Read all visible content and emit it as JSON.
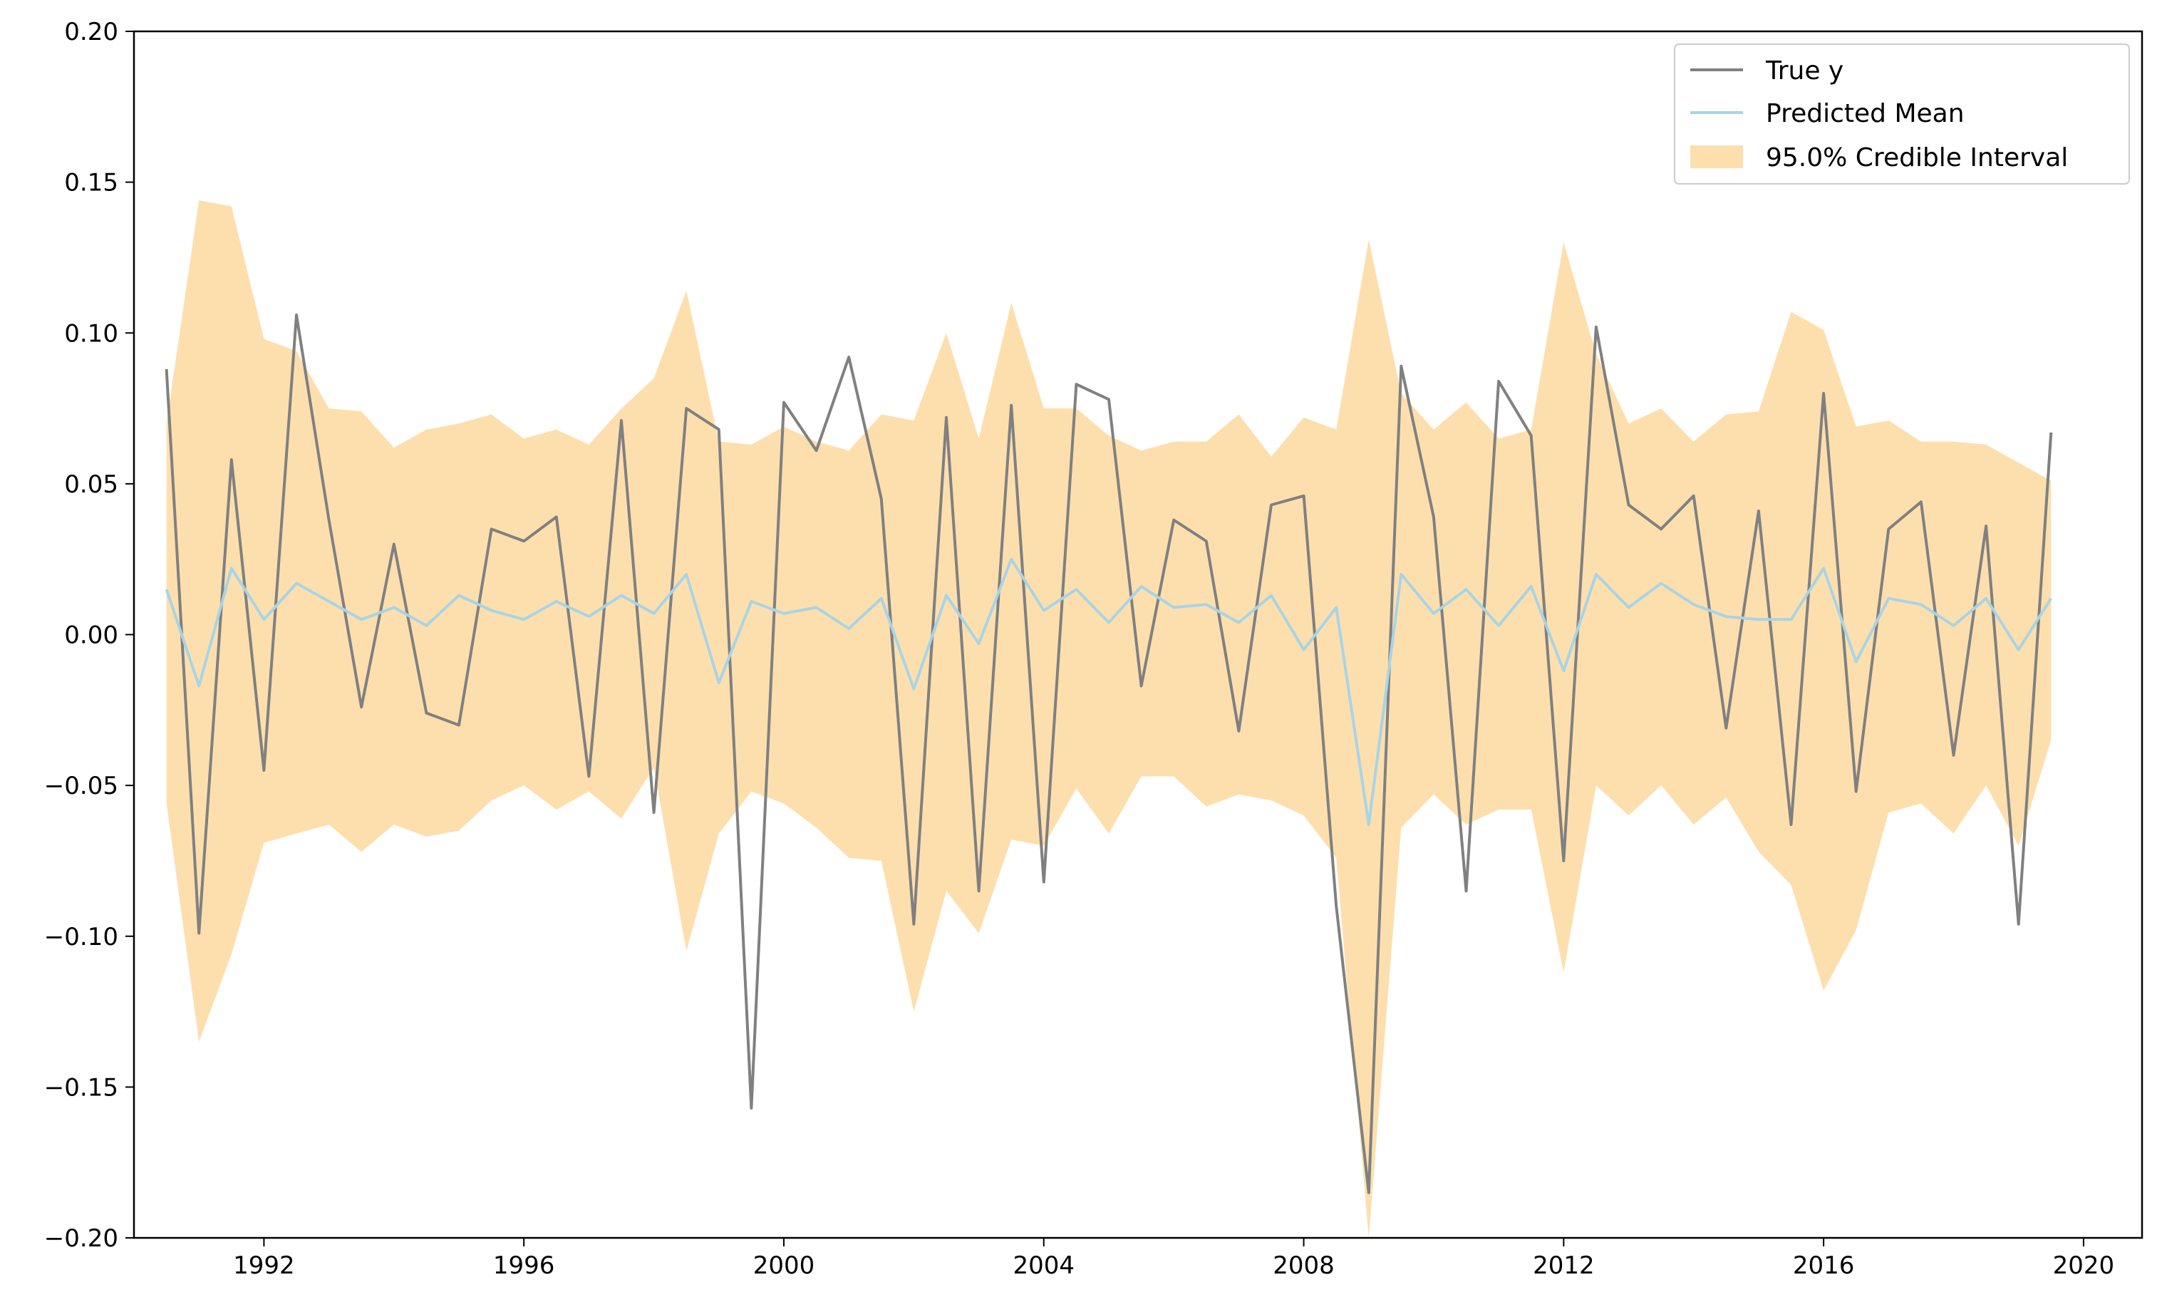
{
  "chart_data": {
    "type": "line",
    "title": "",
    "xlabel": "",
    "ylabel": "",
    "xlim": [
      1990.0,
      2020.9
    ],
    "ylim": [
      -0.2,
      0.2
    ],
    "grid": false,
    "legend_placement": "top-right",
    "x_tick_labels": [
      "1992",
      "1996",
      "2000",
      "2004",
      "2008",
      "2012",
      "2016",
      "2020"
    ],
    "x_ticks": [
      1992,
      1996,
      2000,
      2004,
      2008,
      2012,
      2016,
      2020
    ],
    "y_tick_labels": [
      "−0.20",
      "−0.15",
      "−0.10",
      "−0.05",
      "0.00",
      "0.05",
      "0.10",
      "0.15",
      "0.20"
    ],
    "y_ticks": [
      -0.2,
      -0.15,
      -0.1,
      -0.05,
      0.0,
      0.05,
      0.1,
      0.15,
      0.2
    ],
    "x": [
      1990.5,
      1991.0,
      1991.5,
      1992.0,
      1992.5,
      1993.0,
      1993.5,
      1994.0,
      1994.5,
      1995.0,
      1995.5,
      1996.0,
      1996.5,
      1997.0,
      1997.5,
      1998.0,
      1998.5,
      1999.0,
      1999.5,
      2000.0,
      2000.5,
      2001.0,
      2001.5,
      2002.0,
      2002.5,
      2003.0,
      2003.5,
      2004.0,
      2004.5,
      2005.0,
      2005.5,
      2006.0,
      2006.5,
      2007.0,
      2007.5,
      2008.0,
      2008.5,
      2009.0,
      2009.5,
      2010.0,
      2010.5,
      2011.0,
      2011.5,
      2012.0,
      2012.5,
      2013.0,
      2013.5,
      2014.0,
      2014.5,
      2015.0,
      2015.5,
      2016.0,
      2016.5,
      2017.0,
      2017.5,
      2018.0,
      2018.5,
      2019.0,
      2019.5
    ],
    "series": [
      {
        "name": "True y",
        "color": "#808080",
        "values": [
          0.088,
          -0.099,
          0.058,
          -0.045,
          0.106,
          0.038,
          -0.024,
          0.03,
          -0.026,
          -0.03,
          0.035,
          0.031,
          0.039,
          -0.047,
          0.071,
          -0.059,
          0.075,
          0.068,
          -0.157,
          0.077,
          0.061,
          0.092,
          0.045,
          -0.096,
          0.072,
          -0.085,
          0.076,
          -0.082,
          0.083,
          0.078,
          -0.017,
          0.038,
          0.031,
          -0.032,
          0.043,
          0.046,
          -0.09,
          -0.185,
          0.089,
          0.039,
          -0.085,
          0.084,
          0.066,
          -0.075,
          0.102,
          0.043,
          0.035,
          0.046,
          -0.031,
          0.041,
          -0.063,
          0.08,
          -0.052,
          0.035,
          0.044,
          -0.04,
          0.036,
          -0.096,
          0.067
        ]
      },
      {
        "name": "Predicted Mean",
        "color": "#a8d4e6",
        "values": [
          0.015,
          -0.017,
          0.022,
          0.005,
          0.017,
          0.011,
          0.005,
          0.009,
          0.003,
          0.013,
          0.008,
          0.005,
          0.011,
          0.006,
          0.013,
          0.007,
          0.02,
          -0.016,
          0.011,
          0.007,
          0.009,
          0.002,
          0.012,
          -0.018,
          0.013,
          -0.003,
          0.025,
          0.008,
          0.015,
          0.004,
          0.016,
          0.009,
          0.01,
          0.004,
          0.013,
          -0.005,
          0.009,
          -0.063,
          0.02,
          0.007,
          0.015,
          0.003,
          0.016,
          -0.012,
          0.02,
          0.009,
          0.017,
          0.01,
          0.006,
          0.005,
          0.005,
          0.022,
          -0.009,
          0.012,
          0.01,
          0.003,
          0.012,
          -0.005,
          0.012
        ]
      }
    ],
    "interval": {
      "name": "95.0% Credible Interval",
      "color": "#fddfae",
      "lower": [
        -0.056,
        -0.135,
        -0.106,
        -0.069,
        -0.066,
        -0.063,
        -0.072,
        -0.063,
        -0.067,
        -0.065,
        -0.055,
        -0.05,
        -0.058,
        -0.052,
        -0.061,
        -0.044,
        -0.105,
        -0.066,
        -0.052,
        -0.056,
        -0.064,
        -0.074,
        -0.075,
        -0.125,
        -0.085,
        -0.099,
        -0.068,
        -0.07,
        -0.051,
        -0.066,
        -0.047,
        -0.047,
        -0.057,
        -0.053,
        -0.055,
        -0.06,
        -0.074,
        -0.2,
        -0.064,
        -0.053,
        -0.063,
        -0.058,
        -0.058,
        -0.112,
        -0.05,
        -0.06,
        -0.05,
        -0.063,
        -0.054,
        -0.072,
        -0.083,
        -0.118,
        -0.098,
        -0.059,
        -0.056,
        -0.066,
        -0.05,
        -0.07,
        -0.035
      ],
      "upper": [
        0.07,
        0.144,
        0.142,
        0.098,
        0.094,
        0.075,
        0.074,
        0.062,
        0.068,
        0.07,
        0.073,
        0.065,
        0.068,
        0.063,
        0.075,
        0.085,
        0.114,
        0.064,
        0.063,
        0.069,
        0.064,
        0.061,
        0.073,
        0.071,
        0.1,
        0.065,
        0.11,
        0.075,
        0.075,
        0.066,
        0.061,
        0.064,
        0.064,
        0.073,
        0.059,
        0.072,
        0.068,
        0.131,
        0.08,
        0.068,
        0.077,
        0.065,
        0.068,
        0.13,
        0.093,
        0.07,
        0.075,
        0.064,
        0.073,
        0.074,
        0.107,
        0.101,
        0.069,
        0.071,
        0.064,
        0.064,
        0.063,
        0.057,
        0.051
      ]
    }
  },
  "legend": {
    "items": [
      {
        "label": "True y",
        "color": "#808080",
        "kind": "line"
      },
      {
        "label": "Predicted Mean",
        "color": "#a8d4e6",
        "kind": "line"
      },
      {
        "label": "95.0% Credible Interval",
        "color": "#fddfae",
        "kind": "patch"
      }
    ]
  }
}
